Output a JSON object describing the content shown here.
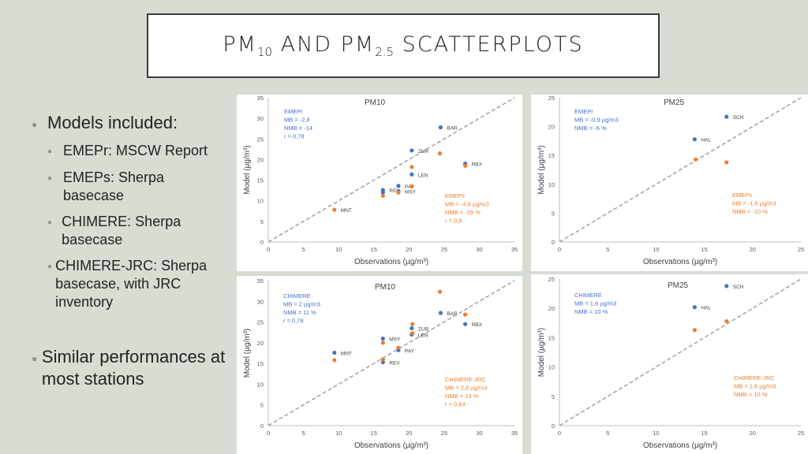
{
  "slide": {
    "title_main": "PM",
    "title_sub1": "10",
    "title_mid": " AND PM",
    "title_sub2": "2.5",
    "title_end": " SCATTERPLOTS"
  },
  "bullets": {
    "b1": "Models included:",
    "b1_items": [
      "EMEPr: MSCW Report",
      "EMEPs: Sherpa basecase",
      "CHIMERE: Sherpa basecase",
      "CHIMERE-JRC: Sherpa basecase, with JRC inventory"
    ],
    "b2": "Similar performances at most stations"
  },
  "colors": {
    "blue": "#4472c4",
    "orange": "#ed7d31",
    "line": "#a6a6a6",
    "axis": "#bfbfbf"
  },
  "chart_data": [
    {
      "type": "scatter",
      "title": "PM10",
      "xlabel": "Observations (µg/m³)",
      "ylabel": "Model (µg/m³)",
      "xlim": [
        0,
        35
      ],
      "ylim": [
        0,
        35
      ],
      "xticks": [
        0,
        5,
        10,
        15,
        20,
        25,
        30,
        35
      ],
      "yticks": [
        0,
        5,
        10,
        15,
        20,
        25,
        30,
        35
      ],
      "reference_line": "1:1",
      "series": [
        {
          "name": "EMEPr",
          "color": "blue",
          "stats": [
            "EMEPr",
            "MB = -2,8",
            "NMB = -14",
            "r = 0,78"
          ],
          "points": [
            {
              "x": 24.5,
              "y": 27.8,
              "label": "BAR"
            },
            {
              "x": 20.4,
              "y": 22.2,
              "label": "ZUR"
            },
            {
              "x": 20.4,
              "y": 16.4,
              "label": "LEN"
            },
            {
              "x": 28.0,
              "y": 19.0,
              "label": "RBX"
            },
            {
              "x": 18.5,
              "y": 13.6,
              "label": "PAY"
            },
            {
              "x": 16.3,
              "y": 12.6,
              "label": "REV"
            },
            {
              "x": 18.5,
              "y": 12.3,
              "label": "MSY"
            },
            {
              "x": 16.3,
              "y": 12.0,
              "label": ""
            }
          ]
        },
        {
          "name": "EMEPs",
          "color": "orange",
          "stats": [
            "EMEPs",
            "MB = -4,8 µg/m3",
            "NMB = -29 %",
            "r = 0,9"
          ],
          "points": [
            {
              "x": 24.4,
              "y": 21.5,
              "label": ""
            },
            {
              "x": 20.4,
              "y": 18.2,
              "label": ""
            },
            {
              "x": 28.0,
              "y": 18.5,
              "label": ""
            },
            {
              "x": 20.4,
              "y": 13.5,
              "label": ""
            },
            {
              "x": 18.5,
              "y": 12.0,
              "label": ""
            },
            {
              "x": 16.3,
              "y": 11.2,
              "label": ""
            },
            {
              "x": 9.4,
              "y": 7.8,
              "label": "MNT"
            }
          ]
        }
      ]
    },
    {
      "type": "scatter",
      "title": "PM25",
      "xlabel": "Observations (µg/m³)",
      "ylabel": "Model (µg/m³)",
      "xlim": [
        0,
        25
      ],
      "ylim": [
        0,
        25
      ],
      "xticks": [
        0,
        5,
        10,
        15,
        20,
        25
      ],
      "yticks": [
        0,
        5,
        10,
        15,
        20,
        25
      ],
      "reference_line": "1:1",
      "series": [
        {
          "name": "EMEPr",
          "color": "blue",
          "stats": [
            "EMEPr",
            "MB = -0,9 µg/m3",
            "NMB = -6 %"
          ],
          "points": [
            {
              "x": 17.3,
              "y": 21.7,
              "label": "SCH"
            },
            {
              "x": 14.0,
              "y": 17.8,
              "label": "HAL"
            }
          ]
        },
        {
          "name": "EMEPs",
          "color": "orange",
          "stats": [
            "EMEPs",
            "MB = -1,6 µg/m3",
            "NMB = -10 %"
          ],
          "points": [
            {
              "x": 14.1,
              "y": 14.3,
              "label": ""
            },
            {
              "x": 17.3,
              "y": 13.8,
              "label": ""
            }
          ]
        }
      ]
    },
    {
      "type": "scatter",
      "title": "PM10",
      "xlabel": "Observations (µg/m³)",
      "ylabel": "Model (µg/m³)",
      "xlim": [
        0,
        35
      ],
      "ylim": [
        0,
        35
      ],
      "xticks": [
        0,
        5,
        10,
        15,
        20,
        25,
        30,
        35
      ],
      "yticks": [
        0,
        5,
        10,
        15,
        20,
        25,
        30,
        35
      ],
      "reference_line": "1:1",
      "series": [
        {
          "name": "CHIMERE",
          "color": "blue",
          "stats": [
            "CHIMERE",
            "MB = 2 µg/m3",
            "NMB = 11 %",
            "r = 0,78"
          ],
          "points": [
            {
              "x": 24.5,
              "y": 27.2,
              "label": "BAR"
            },
            {
              "x": 28.0,
              "y": 24.5,
              "label": "RBX"
            },
            {
              "x": 20.4,
              "y": 23.5,
              "label": "ZUR"
            },
            {
              "x": 20.4,
              "y": 22.0,
              "label": "LEN"
            },
            {
              "x": 16.3,
              "y": 21.0,
              "label": "MSY"
            },
            {
              "x": 18.5,
              "y": 18.2,
              "label": "PAY"
            },
            {
              "x": 16.3,
              "y": 15.3,
              "label": "REV"
            },
            {
              "x": 9.4,
              "y": 17.6,
              "label": "MNT"
            }
          ]
        },
        {
          "name": "CHIMERE-JRC",
          "color": "orange",
          "stats": [
            "CHIMERE-JRC",
            "MB = 2,8 µg/m3",
            "NMB = 13 %",
            "r = 0,84"
          ],
          "points": [
            {
              "x": 24.4,
              "y": 32.3,
              "label": ""
            },
            {
              "x": 28.0,
              "y": 26.8,
              "label": ""
            },
            {
              "x": 20.5,
              "y": 24.5,
              "label": ""
            },
            {
              "x": 20.5,
              "y": 22.3,
              "label": ""
            },
            {
              "x": 16.3,
              "y": 20.0,
              "label": ""
            },
            {
              "x": 18.5,
              "y": 18.8,
              "label": ""
            },
            {
              "x": 16.3,
              "y": 16.0,
              "label": ""
            },
            {
              "x": 9.4,
              "y": 15.8,
              "label": ""
            }
          ]
        }
      ]
    },
    {
      "type": "scatter",
      "title": "PM25",
      "xlabel": "Observations (µg/m³)",
      "ylabel": "Model (µg/m³)",
      "xlim": [
        0,
        25
      ],
      "ylim": [
        0,
        25
      ],
      "xticks": [
        0,
        5,
        10,
        15,
        20,
        25
      ],
      "yticks": [
        0,
        5,
        10,
        15,
        20,
        25
      ],
      "reference_line": "1:1",
      "series": [
        {
          "name": "CHIMERE",
          "color": "blue",
          "stats": [
            "CHIMERE",
            "MB = 1,6 µg/m3",
            "NMB = 10 %"
          ],
          "points": [
            {
              "x": 17.3,
              "y": 23.8,
              "label": "SCH"
            },
            {
              "x": 14.0,
              "y": 20.2,
              "label": "HAL"
            }
          ]
        },
        {
          "name": "CHIMERE-JRC",
          "color": "orange",
          "stats": [
            "CHIMERE-JRC",
            "MB = 1,6 µg/m3",
            "NMB = 10 %"
          ],
          "points": [
            {
              "x": 14.0,
              "y": 16.3,
              "label": ""
            },
            {
              "x": 17.3,
              "y": 17.8,
              "label": ""
            }
          ]
        }
      ]
    }
  ]
}
